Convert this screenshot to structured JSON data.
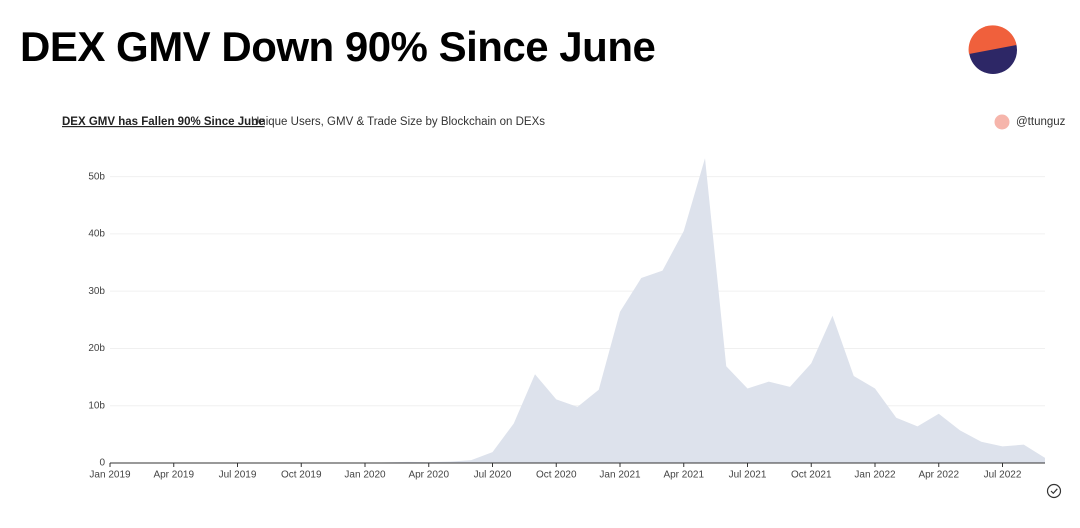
{
  "heading": "DEX GMV Down 90% Since June",
  "chart_data": {
    "type": "area",
    "title": "DEX GMV has Fallen 90% Since June",
    "subtitle": "Unique Users, GMV & Trade Size by Blockchain on DEXs",
    "x": [
      "2019-01",
      "2019-02",
      "2019-03",
      "2019-04",
      "2019-05",
      "2019-06",
      "2019-07",
      "2019-08",
      "2019-09",
      "2019-10",
      "2019-11",
      "2019-12",
      "2020-01",
      "2020-02",
      "2020-03",
      "2020-04",
      "2020-05",
      "2020-06",
      "2020-07",
      "2020-08",
      "2020-09",
      "2020-10",
      "2020-11",
      "2020-12",
      "2021-01",
      "2021-02",
      "2021-03",
      "2021-04",
      "2021-05",
      "2021-06",
      "2021-07",
      "2021-08",
      "2021-09",
      "2021-10",
      "2021-11",
      "2021-12",
      "2022-01",
      "2022-02",
      "2022-03",
      "2022-04",
      "2022-05",
      "2022-06",
      "2022-07",
      "2022-08",
      "2022-09"
    ],
    "series": [
      {
        "name": "@ttunguz",
        "color": "#dde2ec",
        "legend_color": "#f6b5ab",
        "values": [
          0.01,
          0.01,
          0.01,
          0.02,
          0.02,
          0.03,
          0.03,
          0.03,
          0.04,
          0.03,
          0.04,
          0.04,
          0.05,
          0.1,
          0.2,
          0.15,
          0.25,
          0.5,
          1.9,
          6.9,
          15.5,
          11.1,
          9.8,
          12.8,
          26.4,
          32.3,
          33.6,
          40.5,
          53.2,
          16.9,
          13,
          14.2,
          13.3,
          17.4,
          25.7,
          15.2,
          13,
          7.9,
          6.4,
          8.6,
          5.7,
          3.7,
          2.9,
          3.2,
          0.9
        ]
      }
    ],
    "xlim": [
      "2019-01",
      "2022-09"
    ],
    "xticks": [
      {
        "value": "2019-01",
        "label": "Jan 2019"
      },
      {
        "value": "2019-04",
        "label": "Apr 2019"
      },
      {
        "value": "2019-07",
        "label": "Jul 2019"
      },
      {
        "value": "2019-10",
        "label": "Oct 2019"
      },
      {
        "value": "2020-01",
        "label": "Jan 2020"
      },
      {
        "value": "2020-04",
        "label": "Apr 2020"
      },
      {
        "value": "2020-07",
        "label": "Jul 2020"
      },
      {
        "value": "2020-10",
        "label": "Oct 2020"
      },
      {
        "value": "2021-01",
        "label": "Jan 2021"
      },
      {
        "value": "2021-04",
        "label": "Apr 2021"
      },
      {
        "value": "2021-07",
        "label": "Jul 2021"
      },
      {
        "value": "2021-10",
        "label": "Oct 2021"
      },
      {
        "value": "2022-01",
        "label": "Jan 2022"
      },
      {
        "value": "2022-04",
        "label": "Apr 2022"
      },
      {
        "value": "2022-07",
        "label": "Jul 2022"
      }
    ],
    "ylim": [
      0,
      55
    ],
    "yticks": [
      0,
      {
        "value": 10,
        "label": "10b"
      },
      {
        "value": 20,
        "label": "20b"
      },
      {
        "value": 30,
        "label": "30b"
      },
      {
        "value": 40,
        "label": "40b"
      },
      {
        "value": 50,
        "label": "50b"
      }
    ],
    "grid": true
  }
}
